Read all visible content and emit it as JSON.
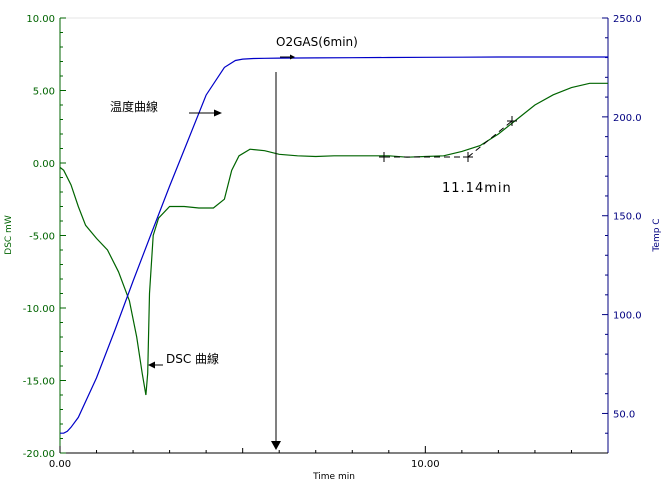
{
  "colors": {
    "dsc": "#006400",
    "temp": "#0000c8",
    "left_axis": "#006400",
    "right_axis": "#000080",
    "grid": "#c8c8c8",
    "annotation": "#000000"
  },
  "chart_data": {
    "type": "line",
    "title": "",
    "xlabel": "Time min",
    "ylabel_left": "DSC mW",
    "ylabel_right": "Temp C",
    "xlim": [
      0,
      15
    ],
    "ylim_left": [
      -20,
      10
    ],
    "ylim_right": [
      30,
      250
    ],
    "grid": false,
    "x_ticks": [
      "0.00",
      "10.00"
    ],
    "x_tick_values": [
      0,
      10
    ],
    "left_ticks": [
      "10.00",
      "5.00",
      "0.00",
      "-5.00",
      "-10.00",
      "-15.00",
      "-20.00"
    ],
    "left_tick_values": [
      10,
      5,
      0,
      -5,
      -10,
      -15,
      -20
    ],
    "right_ticks": [
      "250.0",
      "200.0",
      "150.0",
      "100.0",
      "50.0"
    ],
    "right_tick_values": [
      250,
      200,
      150,
      100,
      50
    ],
    "series": [
      {
        "axis": "left",
        "x": [
          0,
          0.1,
          0.3,
          0.5,
          0.7,
          1.0,
          1.3,
          1.6,
          1.9,
          2.1,
          2.25,
          2.35,
          2.4,
          2.45,
          2.55,
          2.7,
          3.0,
          3.4,
          3.8,
          4.2,
          4.5,
          4.7,
          4.9,
          5.2,
          5.6,
          6.0,
          6.5,
          7.0,
          7.5,
          8.0,
          8.5,
          9.0,
          9.5,
          10.0,
          10.5,
          11.0,
          11.5,
          12.0,
          12.5,
          13.0,
          13.5,
          14.0,
          14.5,
          15.0
        ],
        "y": [
          -0.3,
          -0.5,
          -1.5,
          -3.0,
          -4.3,
          -5.2,
          -6.0,
          -7.5,
          -9.5,
          -12.0,
          -14.5,
          -16.0,
          -14.5,
          -9.0,
          -5.0,
          -3.8,
          -3.0,
          -3.0,
          -3.1,
          -3.1,
          -2.5,
          -0.5,
          0.5,
          0.95,
          0.85,
          0.6,
          0.5,
          0.45,
          0.5,
          0.5,
          0.5,
          0.5,
          0.4,
          0.45,
          0.5,
          0.8,
          1.2,
          2.0,
          3.0,
          4.0,
          4.7,
          5.2,
          5.5,
          5.5
        ]
      },
      {
        "axis": "right",
        "x": [
          0,
          0.1,
          0.2,
          0.3,
          0.5,
          1.0,
          1.5,
          2.0,
          2.5,
          3.0,
          3.5,
          4.0,
          4.5,
          4.8,
          5.0,
          5.3,
          5.6,
          6.0,
          7.0,
          8.0,
          9.0,
          10.0,
          11.0,
          12.0,
          13.0,
          14.0,
          15.0
        ],
        "y": [
          40,
          40,
          41,
          43,
          48,
          68,
          92,
          117,
          141,
          165,
          188,
          211,
          225,
          228.5,
          229.2,
          229.5,
          229.6,
          229.7,
          229.8,
          229.9,
          230,
          230.1,
          230.2,
          230.3,
          230.3,
          230.3,
          230.3
        ]
      }
    ],
    "annotations": [
      "O2GAS(6min)",
      "温度曲線",
      "DSC 曲線",
      "11.14min"
    ]
  }
}
